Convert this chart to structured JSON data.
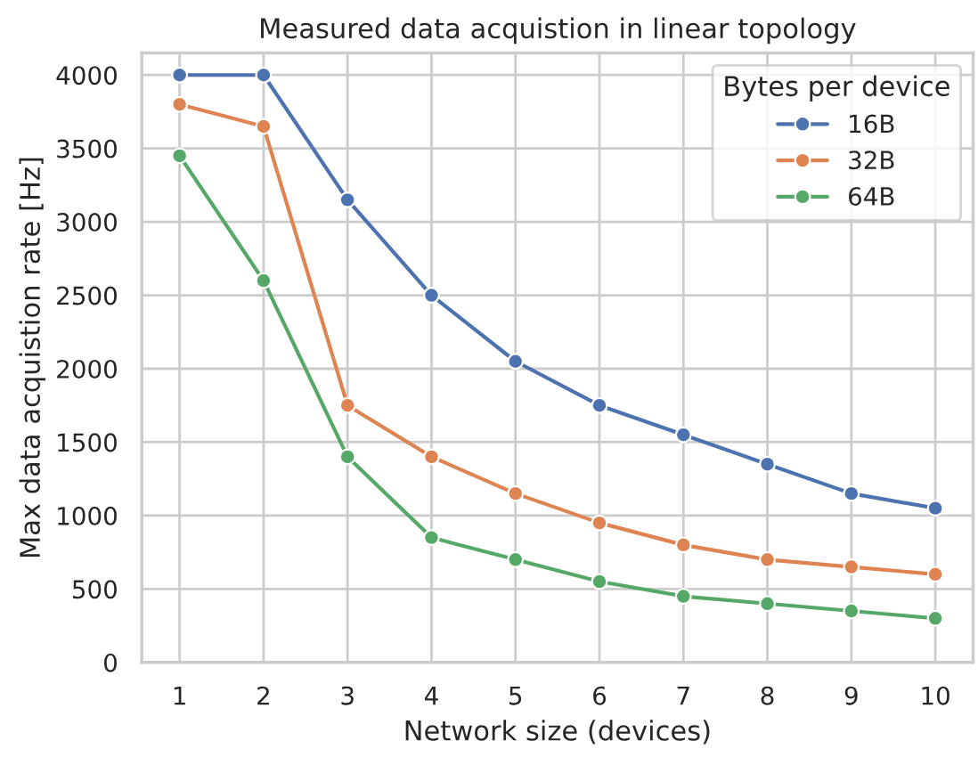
{
  "chart_data": {
    "type": "line",
    "title": "Measured data acquistion in linear topology",
    "xlabel": "Network size (devices)",
    "ylabel": "Max data acquistion rate [Hz]",
    "legend_title": "Bytes per device",
    "x": [
      1,
      2,
      3,
      4,
      5,
      6,
      7,
      8,
      9,
      10
    ],
    "series": [
      {
        "name": "16B",
        "color": "#4c72b0",
        "values": [
          4000,
          4000,
          3150,
          2500,
          2050,
          1750,
          1550,
          1350,
          1150,
          1050
        ]
      },
      {
        "name": "32B",
        "color": "#dd8452",
        "values": [
          3800,
          3650,
          1750,
          1400,
          1150,
          950,
          800,
          700,
          650,
          600
        ]
      },
      {
        "name": "64B",
        "color": "#55a868",
        "values": [
          3450,
          2600,
          1400,
          850,
          700,
          550,
          450,
          400,
          350,
          300
        ]
      }
    ],
    "xlim": [
      0.55,
      10.45
    ],
    "xticks": [
      1,
      2,
      3,
      4,
      5,
      6,
      7,
      8,
      9,
      10
    ],
    "ylim": [
      0,
      4150
    ],
    "yticks": [
      0,
      500,
      1000,
      1500,
      2000,
      2500,
      3000,
      3500,
      4000
    ],
    "grid": true,
    "legend": "top right",
    "marker": "circle",
    "line_style": "solid"
  }
}
